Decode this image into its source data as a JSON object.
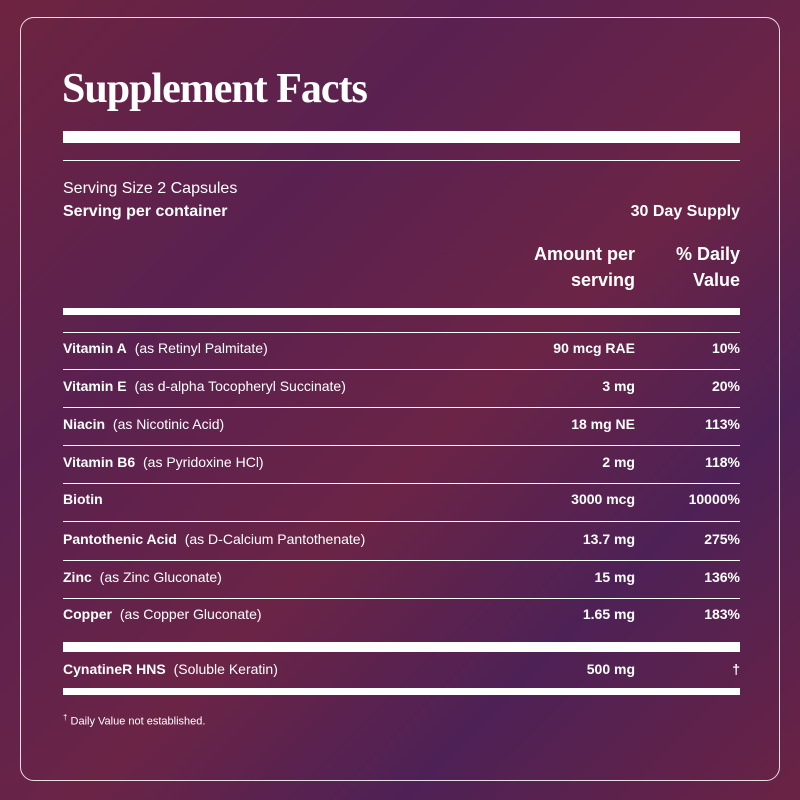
{
  "title": "Supplement Facts",
  "serving_size": "Serving Size 2 Capsules",
  "serving_per_container": {
    "label": "Serving per container",
    "value": "30 Day Supply"
  },
  "headers": {
    "amount": [
      "Amount per",
      "serving"
    ],
    "daily_value": [
      "% Daily",
      "Value"
    ]
  },
  "rows": [
    {
      "name": "Vitamin A",
      "source": "(as Retinyl Palmitate)",
      "amount": "90 mcg RAE",
      "daily_value": "10%"
    },
    {
      "name": "Vitamin E",
      "source": "(as d-alpha Tocopheryl Succinate)",
      "amount": "3 mg",
      "daily_value": "20%"
    },
    {
      "name": "Niacin",
      "source": "(as Nicotinic Acid)",
      "amount": "18 mg NE",
      "daily_value": "113%"
    },
    {
      "name": "Vitamin B6",
      "source": "(as Pyridoxine HCl)",
      "amount": "2 mg",
      "daily_value": "118%"
    },
    {
      "name": "Biotin",
      "source": null,
      "amount": "3000 mcg",
      "daily_value": "10000%"
    },
    {
      "name": "Pantothenic Acid",
      "source": "(as D-Calcium Pantothenate)",
      "amount": "13.7 mg",
      "daily_value": "275%"
    },
    {
      "name": "Zinc",
      "source": "(as Zinc Gluconate)",
      "amount": "15 mg",
      "daily_value": "136%"
    },
    {
      "name": "Copper",
      "source": "(as Copper Gluconate)",
      "amount": "1.65 mg",
      "daily_value": "183%"
    }
  ],
  "special_row": {
    "name": "CynatineR HNS",
    "source": "(Soluble Keratin)",
    "amount": "500 mg",
    "daily_value": "†"
  },
  "footnote": {
    "symbol": "†",
    "text": "Daily Value not established."
  }
}
